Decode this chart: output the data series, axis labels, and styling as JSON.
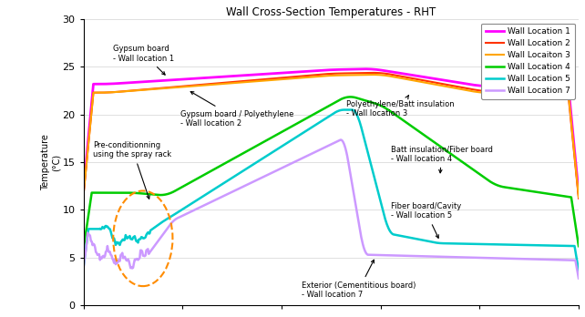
{
  "title": "Wall Cross-Section Temperatures - RHT",
  "ylabel": "Temperature\n(°C)",
  "xlim": [
    0,
    100
  ],
  "ylim": [
    0,
    30
  ],
  "yticks": [
    0,
    5,
    10,
    15,
    20,
    25,
    30
  ],
  "colors": {
    "loc1": "#FF00FF",
    "loc2": "#FF3300",
    "loc3": "#FFA500",
    "loc4": "#00CC00",
    "loc5": "#00CCCC",
    "loc7": "#CC99FF"
  },
  "legend_labels": [
    "Wall Location 1",
    "Wall Location 2",
    "Wall Locaiton 3",
    "Wall Location 4",
    "Wall Location 5",
    "Wall Location 7"
  ],
  "figsize": [
    6.42,
    3.48
  ],
  "dpi": 100
}
